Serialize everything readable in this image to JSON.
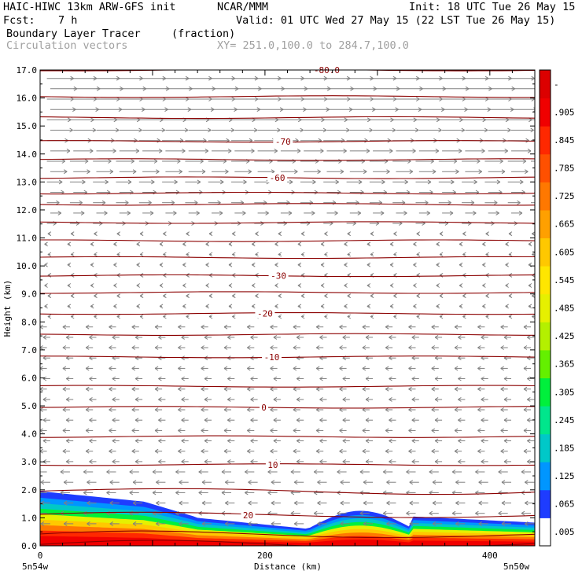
{
  "header": {
    "title": "HAIC-HIWC 13km ARW-GFS init",
    "org": "NCAR/MMM",
    "init": "Init: 18 UTC Tue 26 May 15",
    "fcst_label": "Fcst:",
    "fcst_value": "7 h",
    "valid": "Valid: 01 UTC Wed 27 May 15 (22 LST Tue 26 May 15)",
    "field": "Boundary Layer Tracer",
    "units": "(fraction)",
    "vectors": "Circulation vectors",
    "xy": "XY= 251.0,100.0 to 284.7,100.0"
  },
  "chart_data": {
    "type": "heatmap",
    "xlabel": "Distance (km)",
    "ylabel": "Height (km)",
    "xlim": [
      0,
      440
    ],
    "ylim": [
      0,
      17
    ],
    "x_ticks": [
      "0",
      "200",
      "400"
    ],
    "x_tick_values": [
      0,
      200,
      400
    ],
    "x_end_labels": [
      "5n54w",
      "5n50w"
    ],
    "y_ticks": [
      "0.0",
      "1.0",
      "2.0",
      "3.0",
      "4.0",
      "5.0",
      "6.0",
      "7.0",
      "8.0",
      "9.0",
      "10.0",
      "11.0",
      "12.0",
      "13.0",
      "14.0",
      "15.0",
      "16.0",
      "17.0"
    ],
    "y_tick_values": [
      0,
      1,
      2,
      3,
      4,
      5,
      6,
      7,
      8,
      9,
      10,
      11,
      12,
      13,
      14,
      15,
      16,
      17
    ],
    "colorbar": {
      "labels": [
        ".005",
        ".065",
        ".125",
        ".185",
        ".245",
        ".305",
        ".365",
        ".425",
        ".485",
        ".545",
        ".605",
        ".665",
        ".725",
        ".785",
        ".845",
        ".905",
        "-"
      ],
      "colors": [
        "#ffffff",
        "#1e3cff",
        "#0096ff",
        "#00c8c8",
        "#00e68c",
        "#00f03c",
        "#64f000",
        "#b4f000",
        "#e6f000",
        "#ffe600",
        "#ffc800",
        "#ffa000",
        "#ff7800",
        "#ff5000",
        "#ff2800",
        "#f00000",
        "#dc0000"
      ]
    },
    "temperature_contours": {
      "color": "#8b0000",
      "labels": [
        {
          "text": "20",
          "x": 185,
          "y": 1.1
        },
        {
          "text": "10",
          "x": 207,
          "y": 2.9
        },
        {
          "text": "0",
          "x": 199,
          "y": 4.95
        },
        {
          "text": "-10",
          "x": 206,
          "y": 6.75
        },
        {
          "text": "-20",
          "x": 200,
          "y": 8.3
        },
        {
          "text": "-30",
          "x": 212,
          "y": 9.65
        },
        {
          "text": "-60",
          "x": 211,
          "y": 13.15
        },
        {
          "text": "-70",
          "x": 216,
          "y": 14.45
        },
        {
          "text": "-80.0",
          "x": 255,
          "y": 17.0
        }
      ]
    },
    "vectors": {
      "color": "#808080",
      "description_levels_eastward_above_km": 11.5
    }
  }
}
